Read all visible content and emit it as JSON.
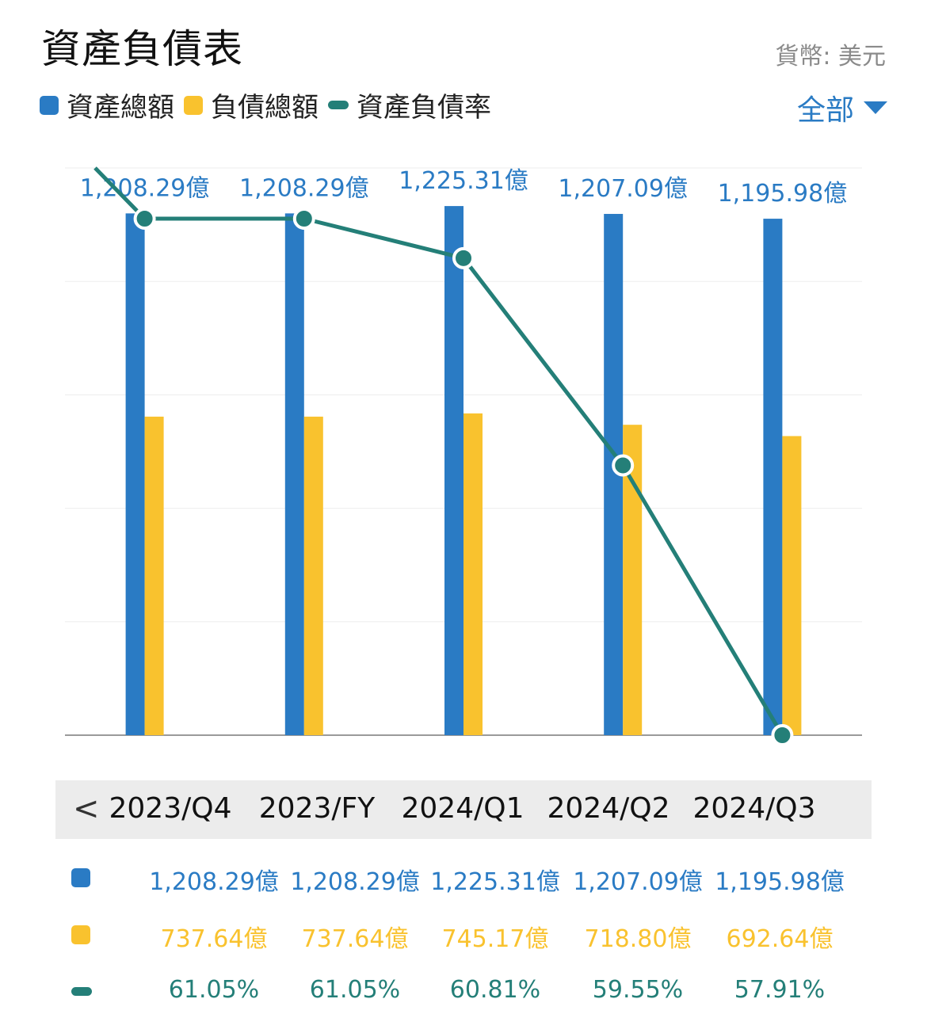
{
  "header": {
    "title": "資產負債表",
    "currency": "貨幣: 美元",
    "filter_label": "全部"
  },
  "legend": [
    {
      "label": "資產總額",
      "color": "#2a7bc4",
      "shape": "square"
    },
    {
      "label": "負債總額",
      "color": "#f9c22e",
      "shape": "square"
    },
    {
      "label": "資產負債率",
      "color": "#247f78",
      "shape": "pill"
    }
  ],
  "chart_data": {
    "type": "bar",
    "categories": [
      "2023/Q4",
      "2023/FY",
      "2024/Q1",
      "2024/Q2",
      "2024/Q3"
    ],
    "series": [
      {
        "name": "資產總額",
        "type": "bar",
        "color": "#2a7bc4",
        "values": [
          1208.29,
          1208.29,
          1225.31,
          1207.09,
          1195.98
        ],
        "labels": [
          "1,208.29億",
          "1,208.29億",
          "1,225.31億",
          "1,207.09億",
          "1,195.98億"
        ]
      },
      {
        "name": "負債總額",
        "type": "bar",
        "color": "#f9c22e",
        "values": [
          737.64,
          737.64,
          745.17,
          718.8,
          692.64
        ],
        "labels": [
          "737.64億",
          "737.64億",
          "745.17億",
          "718.80億",
          "692.64億"
        ]
      },
      {
        "name": "資產負債率",
        "type": "line",
        "color": "#247f78",
        "values": [
          61.05,
          61.05,
          60.81,
          59.55,
          57.91
        ],
        "labels": [
          "61.05%",
          "61.05%",
          "60.81%",
          "59.55%",
          "57.91%"
        ]
      }
    ],
    "grid": true,
    "data_labels_on": "資產總額"
  },
  "nav": {
    "prev_icon": "chevron-left-icon",
    "prev_glyph": "<"
  }
}
